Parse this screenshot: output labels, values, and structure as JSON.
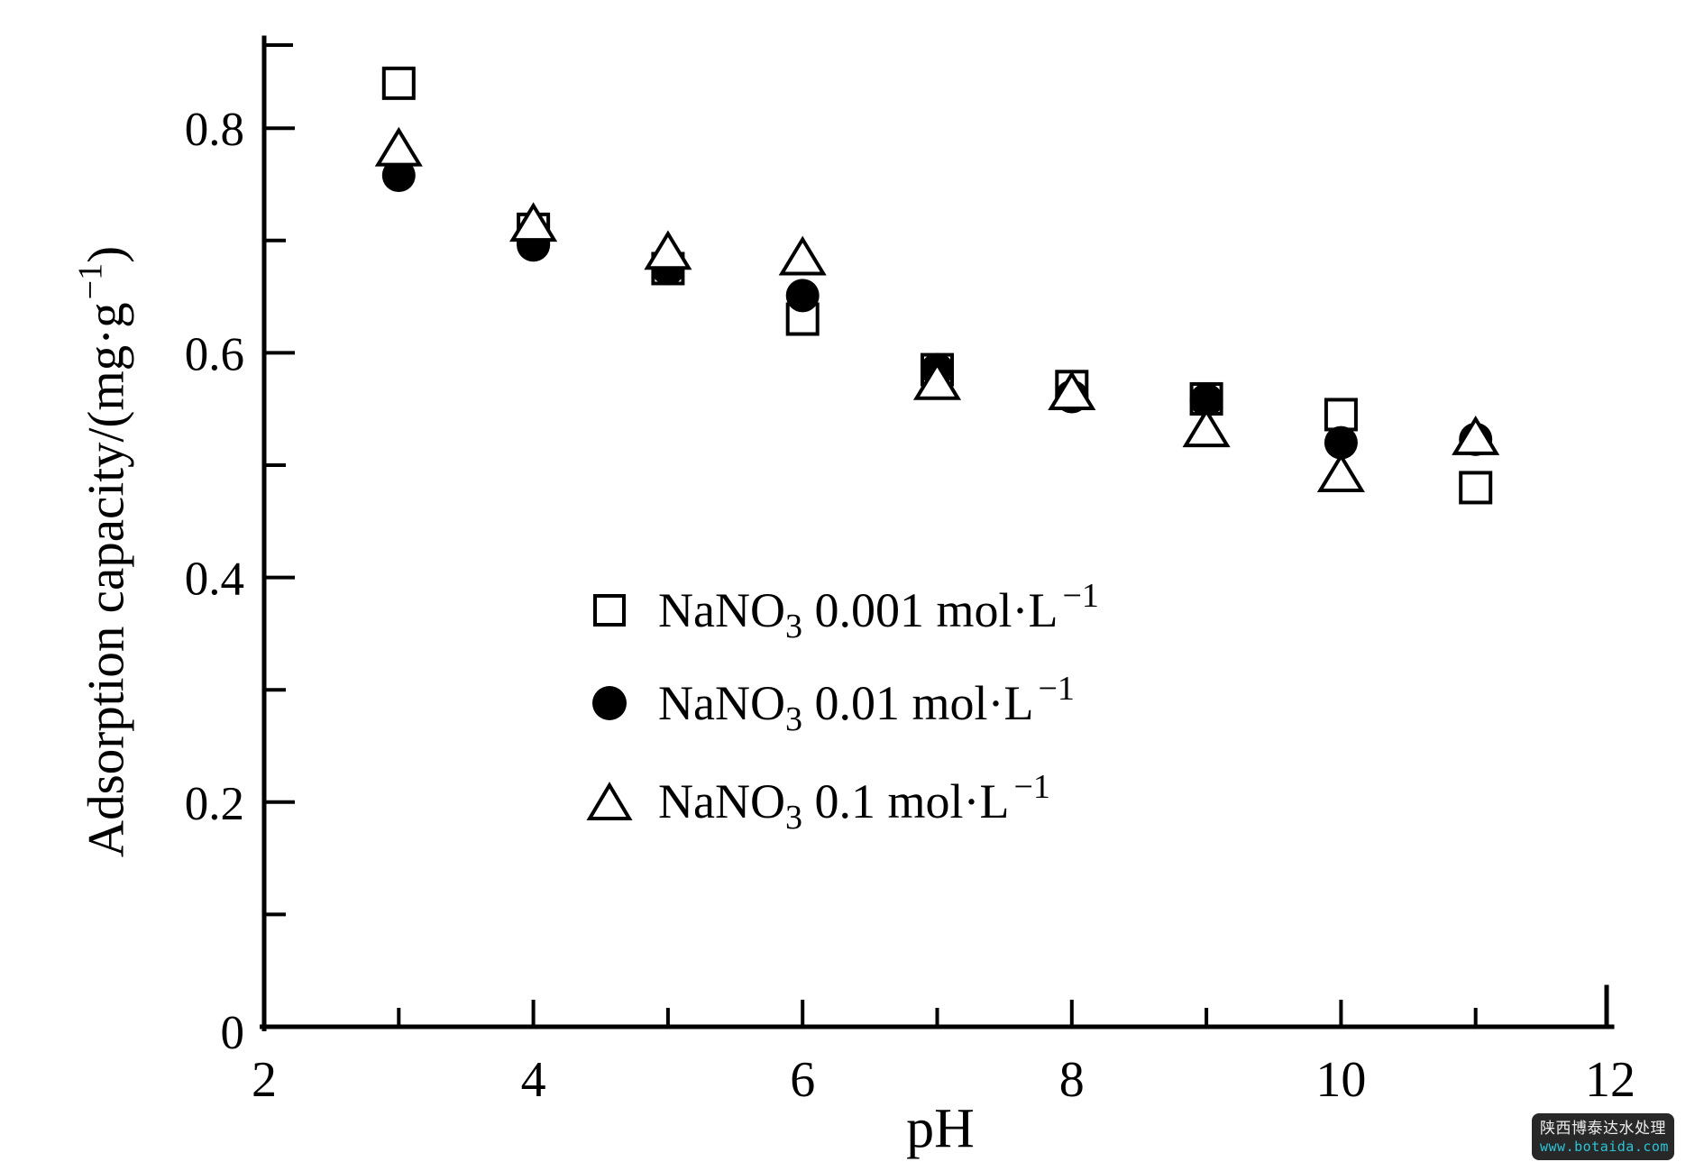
{
  "page": {
    "background": "#ffffff",
    "ink": "#000000"
  },
  "chart_data": {
    "type": "scatter",
    "title": "",
    "xlabel": "pH",
    "ylabel": "Adsorption capacity/(mg·g⁻¹)",
    "ylabel_parts": {
      "pre": "Adsorption capacity/(mg·g",
      "sup": "−1",
      "post": ")"
    },
    "xlim": [
      2,
      12
    ],
    "ylim": [
      0,
      0.875
    ],
    "grid": false,
    "legend_position": "inside-center-left",
    "x_tick_labels": [
      {
        "v": 2,
        "label": "2"
      },
      {
        "v": 4,
        "label": "4"
      },
      {
        "v": 6,
        "label": "6"
      },
      {
        "v": 8,
        "label": "8"
      },
      {
        "v": 10,
        "label": "10"
      },
      {
        "v": 12,
        "label": "12"
      }
    ],
    "x_major_ticks": [
      4,
      6,
      8,
      10
    ],
    "x_minor_ticks": [
      3,
      5,
      7,
      9,
      11
    ],
    "y_tick_labels": [
      {
        "v": 0,
        "label": "0"
      },
      {
        "v": 0.2,
        "label": "0.2"
      },
      {
        "v": 0.4,
        "label": "0.4"
      },
      {
        "v": 0.6,
        "label": "0.6"
      },
      {
        "v": 0.8,
        "label": "0.8"
      }
    ],
    "y_major_ticks": [
      0.2,
      0.4,
      0.6,
      0.8
    ],
    "y_minor_ticks": [
      0.1,
      0.3,
      0.5,
      0.7
    ],
    "x": [
      3,
      4,
      5,
      6,
      7,
      8,
      9,
      10,
      11
    ],
    "series": [
      {
        "name": "NaNO3 0.001 mol·L−1",
        "marker": "open-square",
        "values": [
          0.84,
          0.71,
          0.675,
          0.63,
          0.585,
          0.57,
          0.559,
          0.545,
          0.48
        ]
      },
      {
        "name": "NaNO3 0.01 mol·L−1",
        "marker": "filled-circle",
        "values": [
          0.758,
          0.696,
          0.675,
          0.651,
          0.585,
          0.561,
          0.558,
          0.52,
          0.523
        ]
      },
      {
        "name": "NaNO3 0.1 mol·L−1",
        "marker": "open-triangle",
        "values": [
          0.782,
          0.715,
          0.69,
          0.685,
          0.574,
          0.565,
          0.532,
          0.492,
          0.525
        ]
      }
    ]
  },
  "legend": {
    "items": [
      {
        "prefix": "NaNO",
        "sub": "3",
        "mid": " 0.001 mol·L",
        "sup": "−1",
        "marker": "open-square"
      },
      {
        "prefix": "NaNO",
        "sub": "3",
        "mid": " 0.01 mol·L",
        "sup": "−1",
        "marker": "filled-circle"
      },
      {
        "prefix": "NaNO",
        "sub": "3",
        "mid": " 0.1 mol·L",
        "sup": "−1",
        "marker": "open-triangle"
      }
    ]
  },
  "watermark": {
    "line1": "陕西博泰达水处理",
    "line2": "www.botaida.com",
    "bg": "#282828",
    "text_color": "#ededed",
    "url_color": "#2cc3d6"
  }
}
